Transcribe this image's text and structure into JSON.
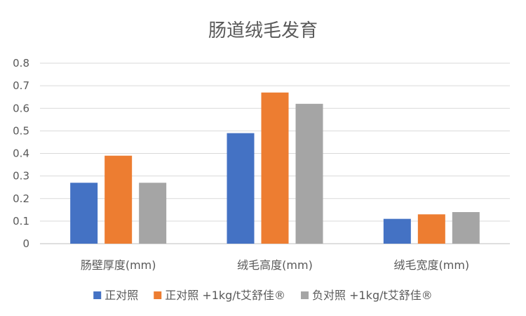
{
  "chart_data": {
    "type": "bar",
    "title": "肠道绒毛发育",
    "categories": [
      "肠壁厚度(mm)",
      "绒毛高度(mm)",
      "绒毛宽度(mm)"
    ],
    "series": [
      {
        "name": "正对照",
        "values": [
          0.27,
          0.49,
          0.11
        ],
        "color": "#4472c4"
      },
      {
        "name": "正对照 +1kg/t艾舒佳®",
        "values": [
          0.39,
          0.67,
          0.13
        ],
        "color": "#ed7d31"
      },
      {
        "name": "负对照 +1kg/t艾舒佳®",
        "values": [
          0.27,
          0.62,
          0.14
        ],
        "color": "#a5a5a5"
      }
    ],
    "ylim": [
      0,
      0.8
    ],
    "yticks": [
      "0",
      "0.1",
      "0.2",
      "0.3",
      "0.4",
      "0.5",
      "0.6",
      "0.7",
      "0.8"
    ],
    "grid": true,
    "legend_position": "bottom"
  }
}
